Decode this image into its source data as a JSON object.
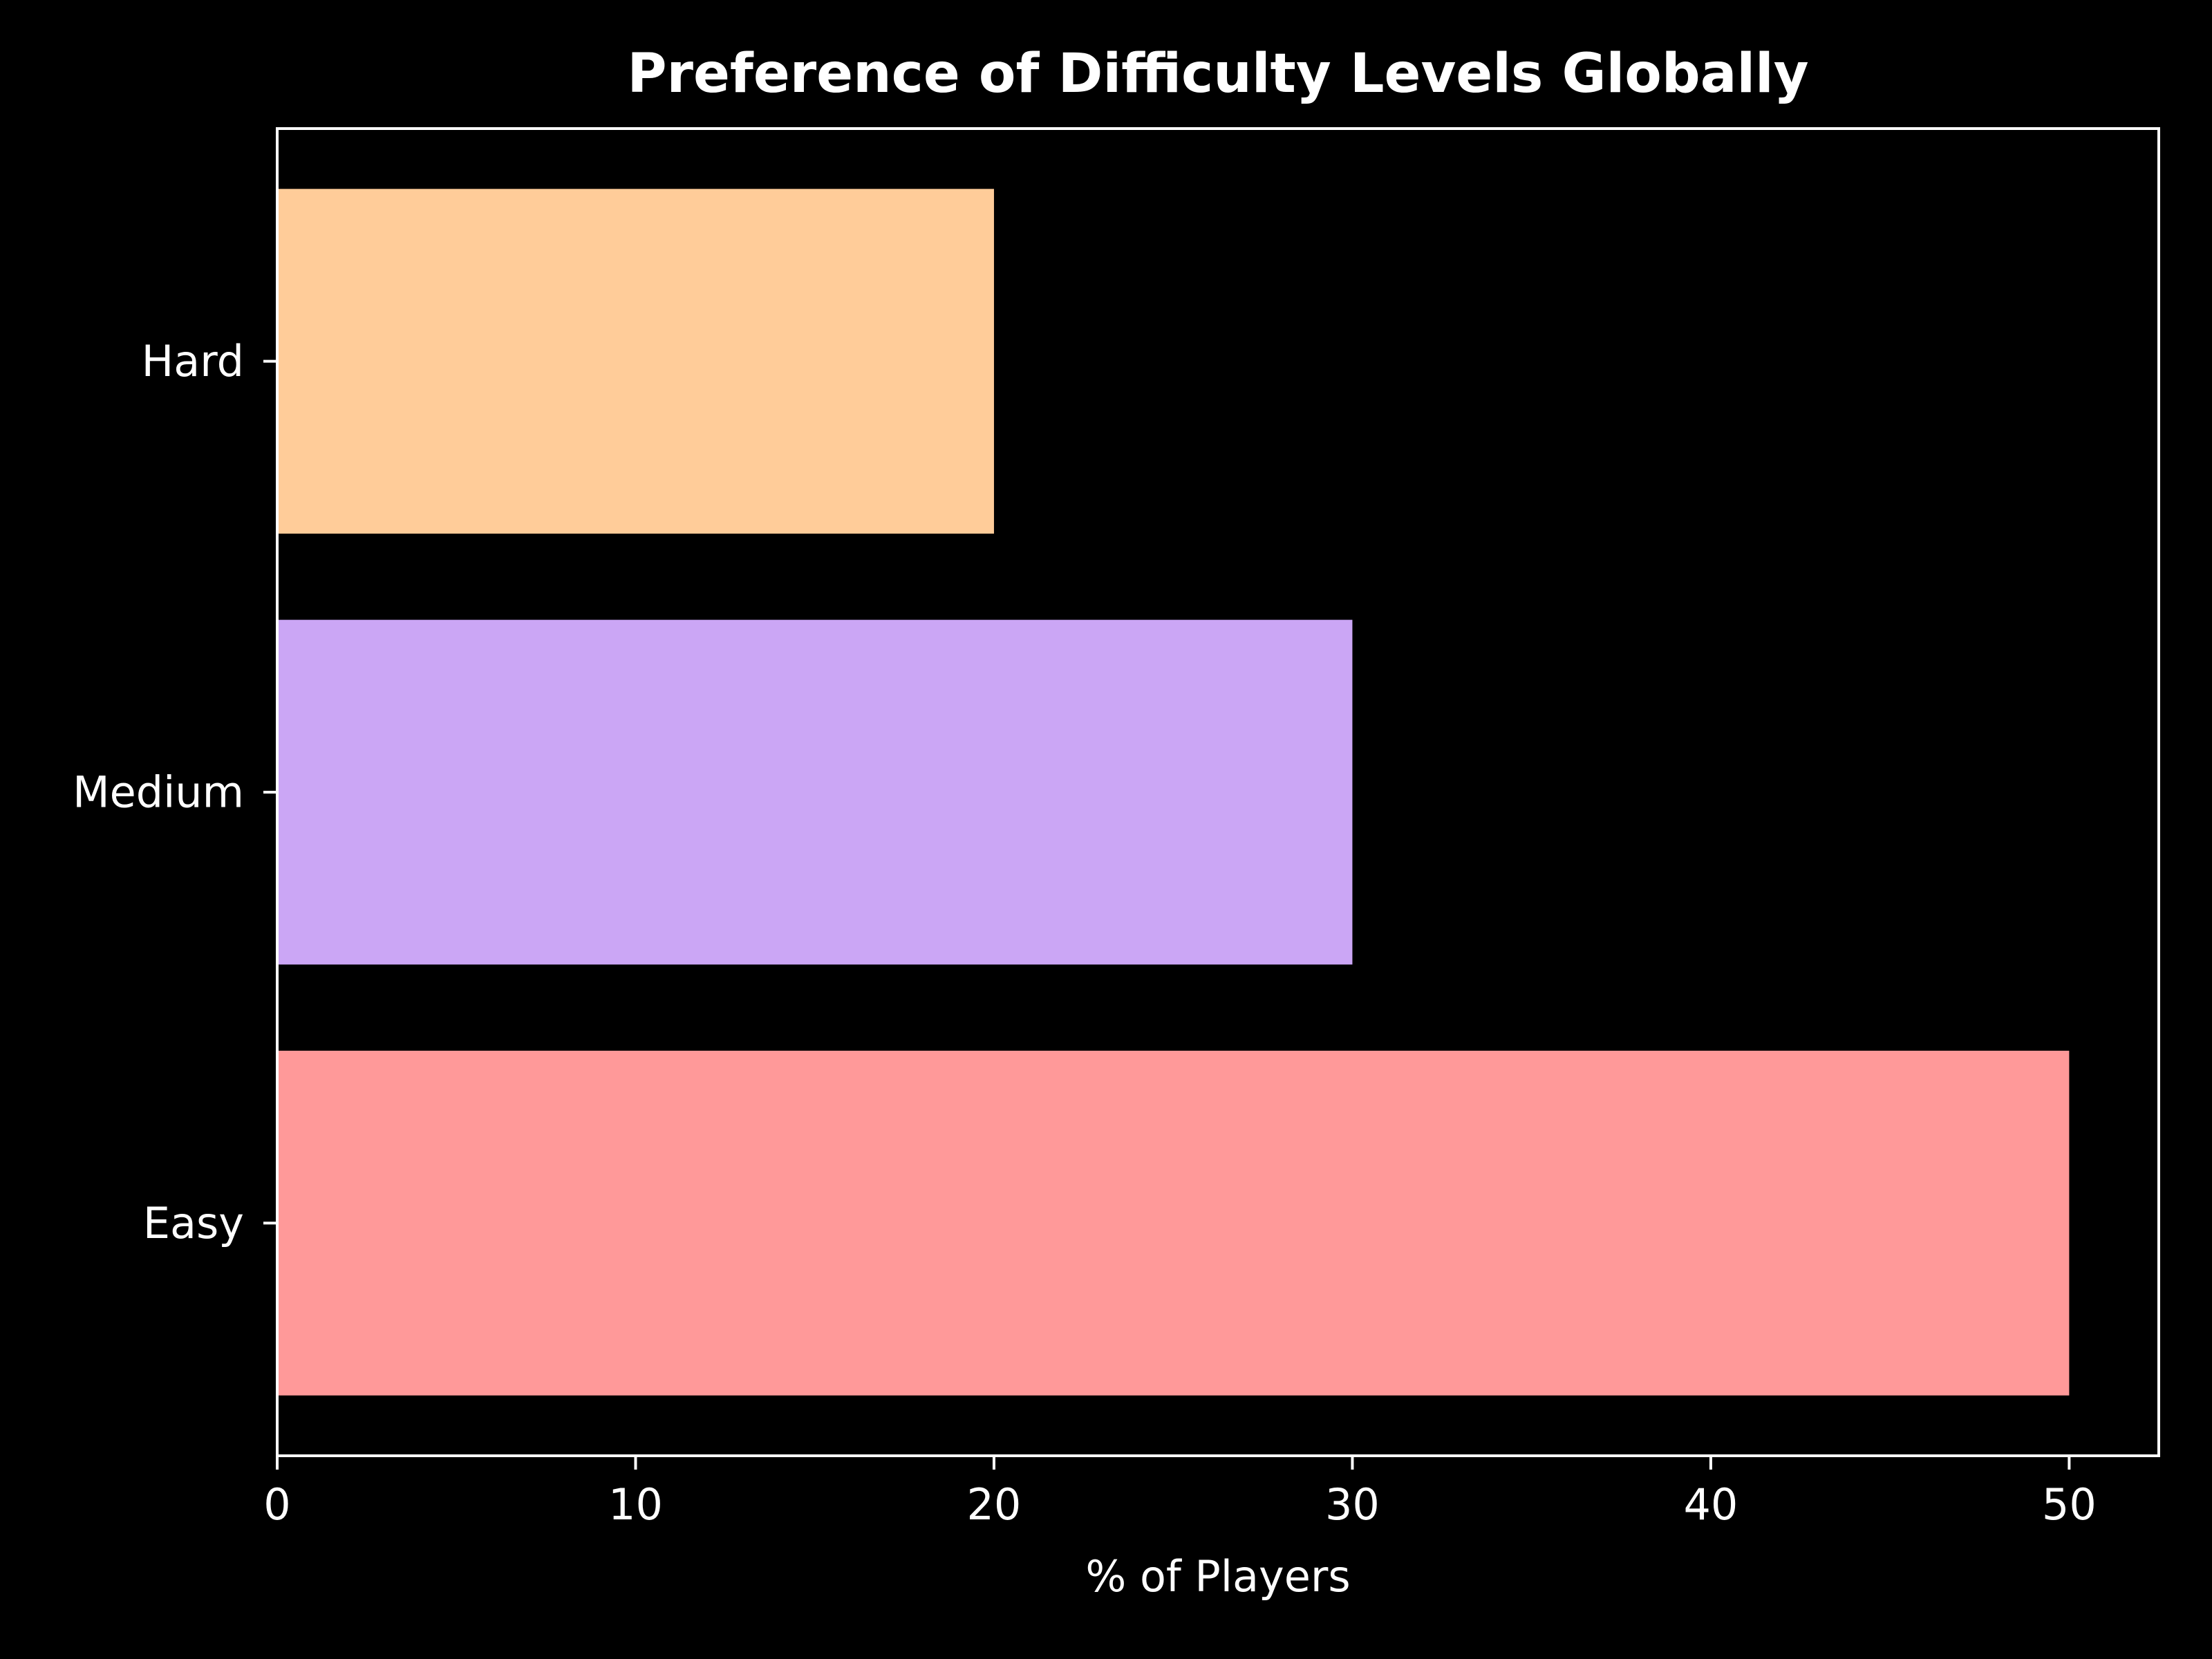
{
  "chart_data": {
    "type": "bar",
    "orientation": "horizontal",
    "title": "Preference of Difficulty Levels Globally",
    "xlabel": "% of Players",
    "ylabel": "",
    "categories": [
      "Easy",
      "Medium",
      "Hard"
    ],
    "values": [
      50,
      30,
      20
    ],
    "colors": [
      "#ff9999",
      "#cba6f5",
      "#ffcc99"
    ],
    "xlim": [
      0,
      52.5
    ],
    "xticks": [
      0,
      10,
      20,
      30,
      40,
      50
    ],
    "xtick_labels": [
      "0",
      "10",
      "20",
      "30",
      "40",
      "50"
    ],
    "grid": false,
    "legend": "none",
    "background": "#000000",
    "foreground": "#ffffff"
  }
}
